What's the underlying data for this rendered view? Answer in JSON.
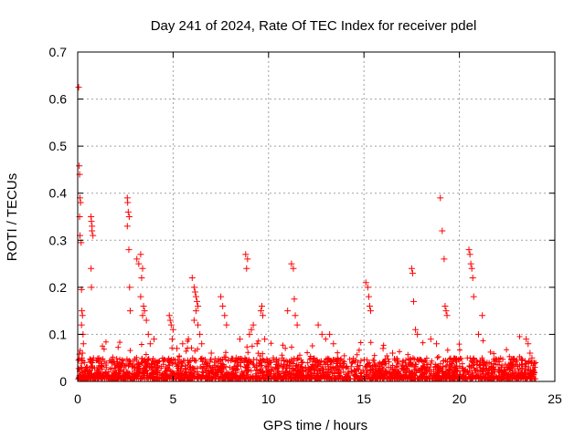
{
  "chart_data": {
    "type": "scatter",
    "title": "Day 241 of 2024, Rate Of TEC Index for receiver pdel",
    "xlabel": "GPS time / hours",
    "ylabel": "ROTI / TECUs",
    "xlim": [
      0,
      25
    ],
    "ylim": [
      0,
      0.7
    ],
    "x_ticks": [
      "0",
      "5",
      "10",
      "15",
      "20",
      "25"
    ],
    "y_ticks": [
      "0",
      "0.1",
      "0.2",
      "0.3",
      "0.4",
      "0.5",
      "0.6",
      "0.7"
    ],
    "grid": true,
    "legend": "none",
    "marker": "plus",
    "color": "#ff0000",
    "series": [
      {
        "x": [
          0.05,
          0.08,
          0.1,
          0.12,
          0.15,
          0.1,
          0.12,
          0.18,
          0.2,
          0.22,
          0.25,
          0.2,
          0.28,
          0.3,
          0.25,
          0.22,
          0.35,
          0.45,
          0.7,
          0.72,
          0.75,
          0.7,
          0.8,
          0.75,
          0.72,
          2.6,
          2.62,
          2.65,
          2.7,
          2.6,
          2.68,
          2.72,
          2.75,
          3.1,
          3.2,
          3.3,
          3.4,
          3.35,
          3.3,
          3.45,
          3.5,
          3.4,
          3.6,
          3.7,
          3.8,
          4.0,
          4.8,
          4.85,
          4.9,
          5.0,
          4.95,
          5.2,
          5.5,
          5.8,
          6.0,
          6.1,
          6.15,
          6.2,
          6.25,
          6.3,
          6.2,
          6.1,
          6.3,
          6.4,
          6.5,
          7.0,
          7.5,
          7.6,
          7.7,
          7.8,
          8.3,
          8.5,
          8.8,
          8.85,
          8.9,
          9.0,
          9.1,
          9.2,
          9.4,
          9.6,
          9.65,
          9.7,
          9.8,
          11.0,
          11.2,
          11.3,
          11.35,
          11.4,
          11.5,
          12.6,
          12.8,
          13.2,
          13.4,
          15.1,
          15.2,
          15.25,
          15.3,
          15.35,
          16.0,
          16.5,
          17.5,
          17.55,
          17.6,
          17.7,
          17.8,
          18.5,
          18.8,
          19.0,
          19.1,
          19.2,
          19.25,
          19.3,
          19.35,
          20.5,
          20.55,
          20.6,
          20.65,
          20.7,
          20.75,
          21.2,
          21.0,
          23.5,
          23.6,
          23.7,
          23.8,
          23.9
        ],
        "y": [
          0.625,
          0.458,
          0.44,
          0.39,
          0.38,
          0.35,
          0.31,
          0.295,
          0.195,
          0.15,
          0.14,
          0.12,
          0.1,
          0.08,
          0.06,
          0.05,
          0.04,
          0.03,
          0.35,
          0.34,
          0.32,
          0.24,
          0.31,
          0.33,
          0.2,
          0.39,
          0.38,
          0.36,
          0.35,
          0.33,
          0.28,
          0.2,
          0.15,
          0.26,
          0.25,
          0.27,
          0.24,
          0.22,
          0.18,
          0.16,
          0.15,
          0.14,
          0.13,
          0.1,
          0.08,
          0.09,
          0.14,
          0.13,
          0.12,
          0.11,
          0.09,
          0.07,
          0.08,
          0.09,
          0.22,
          0.2,
          0.19,
          0.18,
          0.17,
          0.16,
          0.15,
          0.13,
          0.12,
          0.1,
          0.08,
          0.06,
          0.18,
          0.16,
          0.14,
          0.12,
          0.05,
          0.09,
          0.27,
          0.24,
          0.26,
          0.1,
          0.11,
          0.12,
          0.08,
          0.15,
          0.16,
          0.14,
          0.09,
          0.15,
          0.25,
          0.24,
          0.175,
          0.14,
          0.12,
          0.12,
          0.1,
          0.1,
          0.08,
          0.21,
          0.2,
          0.18,
          0.16,
          0.15,
          0.07,
          0.06,
          0.24,
          0.23,
          0.17,
          0.11,
          0.1,
          0.09,
          0.08,
          0.39,
          0.32,
          0.26,
          0.16,
          0.15,
          0.14,
          0.28,
          0.27,
          0.25,
          0.24,
          0.22,
          0.18,
          0.14,
          0.1,
          0.09,
          0.08,
          0.06,
          0.05,
          0.04
        ]
      }
    ],
    "baseline_band": {
      "y_min": 0.005,
      "y_max": 0.05
    }
  }
}
